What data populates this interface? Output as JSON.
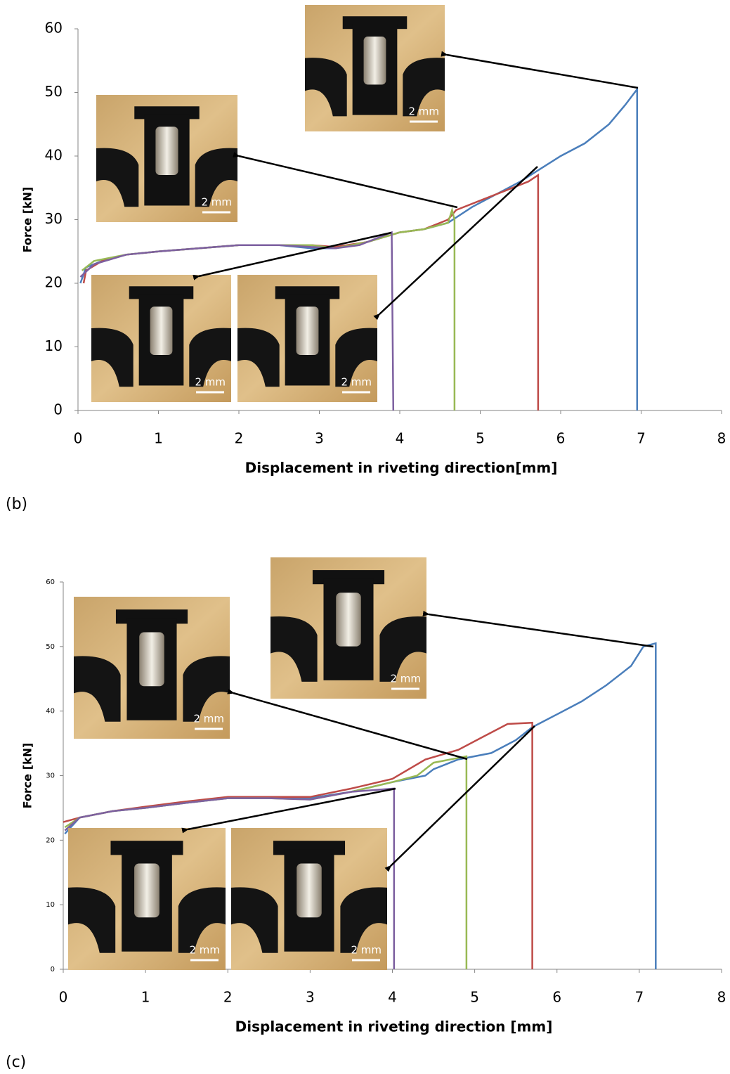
{
  "chart_data": [
    {
      "type": "line",
      "panel_label": "(b)",
      "xlabel": "Displacement in riveting direction[mm]",
      "ylabel": "Force [kN]",
      "xlim": [
        0,
        8
      ],
      "ylim": [
        0,
        60
      ],
      "xticks": [
        0,
        1,
        2,
        3,
        4,
        5,
        6,
        7,
        8
      ],
      "yticks": [
        0,
        10,
        20,
        30,
        40,
        50,
        60
      ],
      "series": [
        {
          "color": "#4a7ebb",
          "x": [
            0.03,
            0.1,
            0.3,
            0.6,
            1,
            1.5,
            2,
            2.5,
            2.9,
            3.2,
            3.6,
            4,
            4.3,
            4.6,
            4.9,
            5.2,
            5.5,
            5.75,
            6,
            6.3,
            6.6,
            6.8,
            6.95,
            6.95
          ],
          "values": [
            20,
            22.5,
            23.5,
            24.5,
            25,
            25.5,
            26,
            26,
            25.5,
            25.5,
            26.5,
            28,
            28.5,
            29.5,
            32,
            34,
            36,
            38,
            40,
            42,
            45,
            48,
            50.5,
            0
          ]
        },
        {
          "color": "#be4b48",
          "x": [
            0.07,
            0.1,
            0.3,
            0.6,
            1,
            1.5,
            2,
            2.5,
            2.9,
            3.2,
            3.6,
            4,
            4.3,
            4.6,
            4.7,
            5,
            5.3,
            5.6,
            5.72,
            5.72
          ],
          "values": [
            20,
            22,
            23.5,
            24.5,
            25,
            25.5,
            26,
            26,
            26,
            25.7,
            26.5,
            28,
            28.5,
            30,
            31.5,
            33,
            34.5,
            36,
            37,
            0
          ]
        },
        {
          "color": "#98b954",
          "x": [
            0.05,
            0.2,
            0.6,
            1,
            1.5,
            2,
            2.5,
            2.9,
            3.2,
            3.6,
            4,
            4.3,
            4.6,
            4.65,
            4.68,
            4.68
          ],
          "values": [
            22,
            23.5,
            24.5,
            25,
            25.5,
            26,
            26,
            26,
            25.5,
            26.5,
            28,
            28.5,
            29.5,
            31.5,
            30,
            0
          ]
        },
        {
          "color": "#7d60a0",
          "x": [
            0.03,
            0.2,
            0.6,
            1,
            1.5,
            2,
            2.5,
            2.9,
            3.2,
            3.5,
            3.9,
            3.92
          ],
          "values": [
            21,
            23,
            24.5,
            25,
            25.5,
            26,
            26,
            25.7,
            25.5,
            26,
            28,
            0
          ]
        }
      ],
      "insets": [
        {
          "scale_label": "2 mm"
        },
        {
          "scale_label": "2 mm"
        },
        {
          "scale_label": "2 mm"
        },
        {
          "scale_label": "2 mm"
        }
      ]
    },
    {
      "type": "line",
      "panel_label": "(c)",
      "xlabel": "Displacement in riveting direction [mm]",
      "ylabel": "Force [kN]",
      "xlim": [
        0,
        8
      ],
      "ylim": [
        0,
        60
      ],
      "xticks": [
        0,
        1,
        2,
        3,
        4,
        5,
        6,
        7,
        8
      ],
      "yticks": [
        0,
        10,
        20,
        30,
        40,
        50,
        60
      ],
      "series": [
        {
          "color": "#4a7ebb",
          "x": [
            0.02,
            0.2,
            0.6,
            1,
            1.5,
            2,
            2.5,
            3,
            3.5,
            4,
            4.4,
            4.5,
            4.8,
            5.2,
            5.5,
            5.7,
            6,
            6.3,
            6.6,
            6.9,
            7.05,
            7.2,
            7.2
          ],
          "values": [
            21,
            23.5,
            24.5,
            25,
            25.8,
            26.5,
            26.5,
            26.5,
            27.5,
            29,
            30,
            31,
            32.5,
            33.5,
            35.5,
            37.5,
            39.5,
            41.5,
            44,
            47,
            50,
            50.5,
            0
          ]
        },
        {
          "color": "#be4b48",
          "x": [
            0,
            0.2,
            0.6,
            1,
            1.5,
            2,
            2.5,
            3,
            3.5,
            4,
            4.4,
            4.8,
            5.1,
            5.4,
            5.7,
            5.7
          ],
          "values": [
            22.8,
            23.5,
            24.5,
            25.2,
            26,
            26.7,
            26.7,
            26.7,
            28,
            29.5,
            32.5,
            34,
            36,
            38,
            38.2,
            0
          ]
        },
        {
          "color": "#98b954",
          "x": [
            0.02,
            0.2,
            0.6,
            1,
            1.5,
            2,
            2.5,
            3,
            3.5,
            4,
            4.3,
            4.5,
            4.9,
            4.9
          ],
          "values": [
            22,
            23.5,
            24.5,
            25,
            25.8,
            26.5,
            26.5,
            26.3,
            27.5,
            29,
            30,
            32,
            33,
            0
          ]
        },
        {
          "color": "#7d60a0",
          "x": [
            0.02,
            0.2,
            0.6,
            1,
            1.5,
            2,
            2.5,
            3,
            3.5,
            4.02,
            4.02
          ],
          "values": [
            21.5,
            23.5,
            24.5,
            25,
            25.8,
            26.5,
            26.5,
            26.3,
            27.5,
            28,
            0
          ]
        }
      ],
      "insets": [
        {
          "scale_label": "2 mm"
        },
        {
          "scale_label": "2 mm"
        },
        {
          "scale_label": "2 mm"
        },
        {
          "scale_label": "2 mm"
        }
      ]
    }
  ]
}
